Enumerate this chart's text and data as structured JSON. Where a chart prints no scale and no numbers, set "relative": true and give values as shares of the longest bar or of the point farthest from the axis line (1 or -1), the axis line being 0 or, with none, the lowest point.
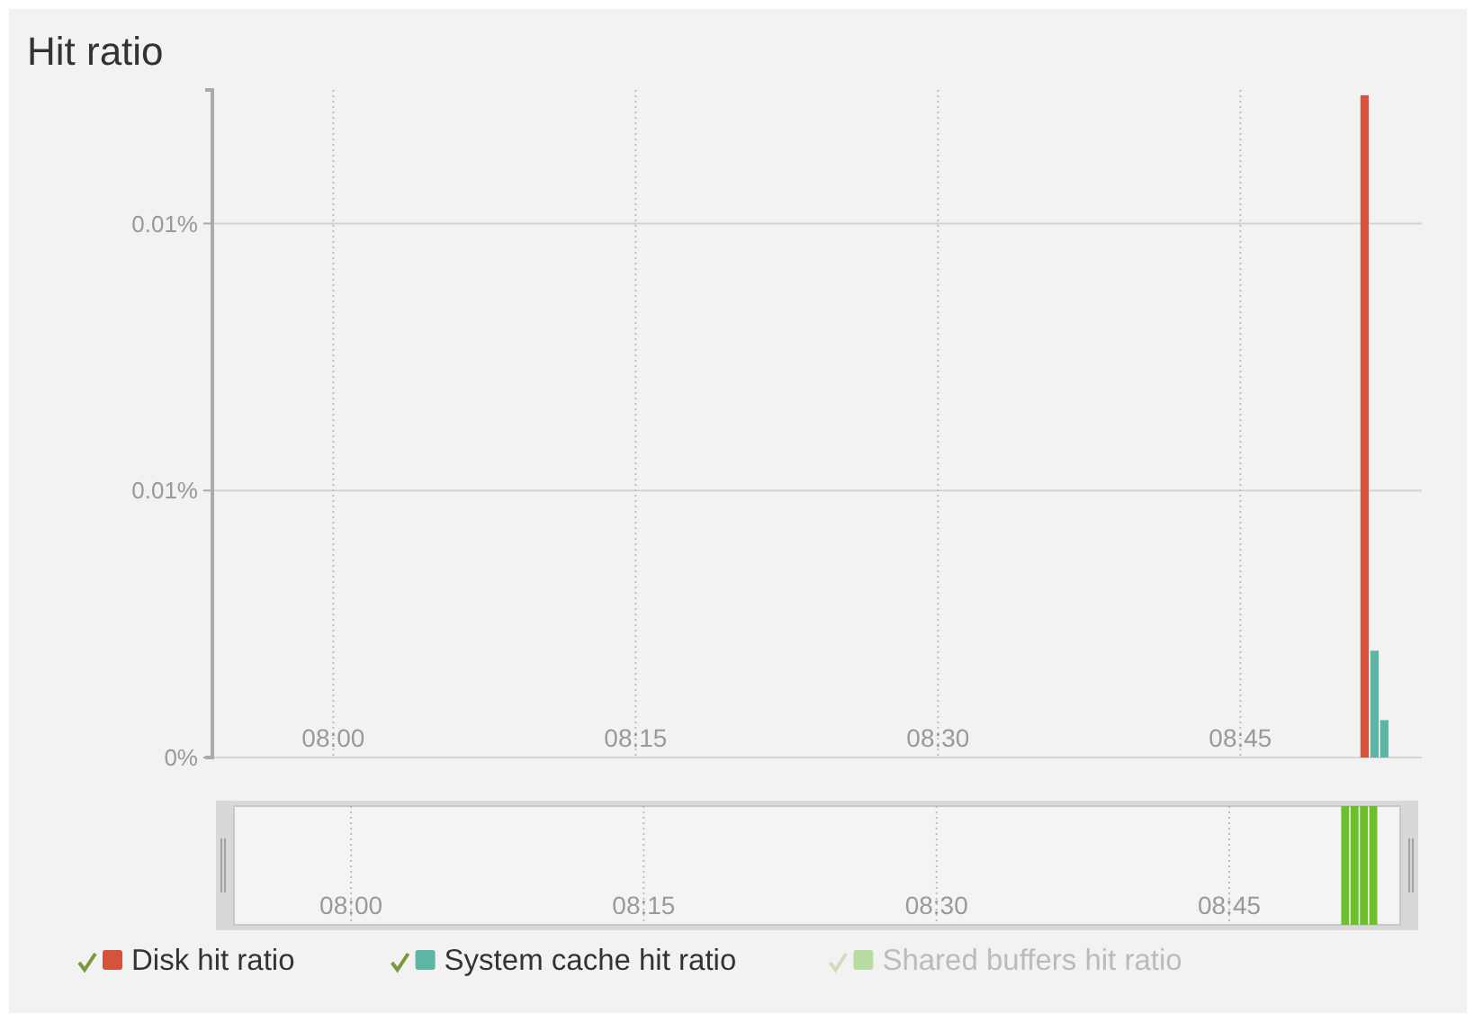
{
  "chart_data": [
    {
      "type": "bar",
      "title": "Hit ratio",
      "xlim": [
        7.9,
        8.9
      ],
      "xticks": [
        {
          "value": 8,
          "label": "08:00"
        },
        {
          "value": 8.25,
          "label": "08:15"
        },
        {
          "value": 8.5,
          "label": "08:30"
        },
        {
          "value": 8.75,
          "label": "08:45"
        }
      ],
      "ylim": [
        0,
        0.0125
      ],
      "yticks": [
        {
          "value": 0,
          "label": "0%"
        },
        {
          "value": 0.005,
          "label": "0.01%"
        },
        {
          "value": 0.01,
          "label": "0.01%"
        }
      ],
      "grid": true,
      "legend": "bottom",
      "series": [
        {
          "name": "Disk hit ratio",
          "color": "#d4533b",
          "x": [
            8.8527
          ],
          "values": [
            0.0124
          ]
        },
        {
          "name": "System cache hit ratio",
          "color": "#5db5a5",
          "x": [
            8.8609,
            8.869
          ],
          "values": [
            0.002,
            0.0007
          ]
        },
        {
          "name": "Shared buffers hit ratio",
          "color": "#b9dca3"
        }
      ]
    },
    {
      "type": "bar",
      "relative": true,
      "xlim": [
        7.9,
        8.896
      ],
      "xticks": [
        {
          "value": 8,
          "label": "08:00"
        },
        {
          "value": 8.25,
          "label": "08:15"
        },
        {
          "value": 8.5,
          "label": "08:30"
        },
        {
          "value": 8.75,
          "label": "08:45"
        }
      ],
      "grid": "x",
      "x": [
        8.849,
        8.857,
        8.865,
        8.873
      ],
      "values": [
        1,
        1,
        1,
        1
      ],
      "color": "#6dbf2c"
    }
  ]
}
